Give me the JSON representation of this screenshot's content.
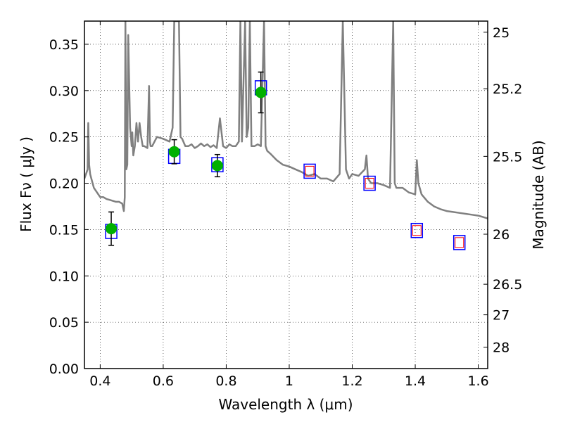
{
  "chart_data": {
    "type": "scatter",
    "title": "",
    "xlabel": "Wavelength  λ (μm)",
    "ylabel": "Flux  Fν  ( μJy )",
    "ylabel_right": "Magnitude (AB)",
    "xlim": [
      0.35,
      1.63
    ],
    "ylim": [
      0.0,
      0.375
    ],
    "grid": "dotted",
    "x_ticks": [
      0.4,
      0.6,
      0.8,
      1.0,
      1.2,
      1.4,
      1.6
    ],
    "x_tick_labels": [
      "0.4",
      "0.6",
      "0.8",
      "1",
      "1.2",
      "1.4",
      "1.6"
    ],
    "y_ticks": [
      0.0,
      0.05,
      0.1,
      0.15,
      0.2,
      0.25,
      0.3,
      0.35
    ],
    "y_tick_labels": [
      "0.00",
      "0.05",
      "0.10",
      "0.15",
      "0.20",
      "0.25",
      "0.30",
      "0.35"
    ],
    "right_ticks": [
      {
        "label": "25",
        "flux": 0.363
      },
      {
        "label": "25.2",
        "flux": 0.302
      },
      {
        "label": "25.5",
        "flux": 0.229
      },
      {
        "label": "26",
        "flux": 0.145
      },
      {
        "label": "26.5",
        "flux": 0.091
      },
      {
        "label": "27",
        "flux": 0.058
      },
      {
        "label": "28",
        "flux": 0.023
      }
    ],
    "colors": {
      "model": "#808080",
      "observed": "#00b000",
      "synthetic_box": "#0000ff",
      "predicted_box": "#ff0000",
      "errorbar": "#000000"
    },
    "series": [
      {
        "kind": "line",
        "x": [
          0.35,
          0.36,
          0.362,
          0.365,
          0.368,
          0.372,
          0.38,
          0.39,
          0.4,
          0.41,
          0.42,
          0.43,
          0.44,
          0.45,
          0.46,
          0.47,
          0.475,
          0.478,
          0.48,
          0.483,
          0.486,
          0.489,
          0.495,
          0.5,
          0.502,
          0.505,
          0.51,
          0.515,
          0.52,
          0.525,
          0.53,
          0.535,
          0.54,
          0.55,
          0.555,
          0.558,
          0.56,
          0.565,
          0.58,
          0.6,
          0.62,
          0.63,
          0.635,
          0.64,
          0.645,
          0.65,
          0.655,
          0.66,
          0.67,
          0.68,
          0.69,
          0.7,
          0.71,
          0.72,
          0.73,
          0.74,
          0.75,
          0.76,
          0.77,
          0.78,
          0.79,
          0.8,
          0.81,
          0.82,
          0.83,
          0.84,
          0.845,
          0.85,
          0.86,
          0.865,
          0.87,
          0.875,
          0.88,
          0.89,
          0.9,
          0.91,
          0.92,
          0.925,
          0.93,
          0.94,
          0.96,
          0.98,
          1.0,
          1.02,
          1.04,
          1.06,
          1.08,
          1.1,
          1.12,
          1.14,
          1.16,
          1.17,
          1.18,
          1.19,
          1.2,
          1.22,
          1.24,
          1.245,
          1.25,
          1.26,
          1.27,
          1.28,
          1.3,
          1.32,
          1.33,
          1.335,
          1.34,
          1.36,
          1.38,
          1.4,
          1.405,
          1.41,
          1.42,
          1.44,
          1.46,
          1.48,
          1.5,
          1.52,
          1.54,
          1.56,
          1.58,
          1.6,
          1.63
        ],
        "y": [
          0.205,
          0.215,
          0.265,
          0.22,
          0.21,
          0.205,
          0.195,
          0.19,
          0.185,
          0.185,
          0.183,
          0.182,
          0.181,
          0.18,
          0.18,
          0.178,
          0.17,
          0.185,
          0.375,
          0.215,
          0.22,
          0.36,
          0.26,
          0.24,
          0.255,
          0.23,
          0.24,
          0.265,
          0.245,
          0.265,
          0.25,
          0.24,
          0.24,
          0.238,
          0.305,
          0.245,
          0.24,
          0.24,
          0.25,
          0.248,
          0.245,
          0.26,
          0.375,
          0.375,
          0.375,
          0.375,
          0.25,
          0.248,
          0.24,
          0.24,
          0.242,
          0.238,
          0.24,
          0.243,
          0.24,
          0.242,
          0.239,
          0.241,
          0.238,
          0.27,
          0.24,
          0.238,
          0.242,
          0.24,
          0.24,
          0.245,
          0.375,
          0.245,
          0.375,
          0.25,
          0.26,
          0.375,
          0.24,
          0.24,
          0.242,
          0.24,
          0.375,
          0.24,
          0.235,
          0.232,
          0.225,
          0.22,
          0.218,
          0.215,
          0.212,
          0.208,
          0.21,
          0.205,
          0.205,
          0.202,
          0.21,
          0.375,
          0.215,
          0.205,
          0.21,
          0.208,
          0.215,
          0.23,
          0.205,
          0.2,
          0.2,
          0.2,
          0.198,
          0.195,
          0.375,
          0.2,
          0.195,
          0.195,
          0.19,
          0.188,
          0.225,
          0.2,
          0.188,
          0.18,
          0.175,
          0.172,
          0.17,
          0.169,
          0.168,
          0.167,
          0.166,
          0.165,
          0.162
        ]
      },
      {
        "kind": "points",
        "x": [
          0.435,
          0.635,
          0.772,
          0.91
        ],
        "y": [
          0.151,
          0.234,
          0.219,
          0.298
        ],
        "err": [
          0.018,
          0.013,
          0.012,
          0.022
        ]
      },
      {
        "kind": "boxes",
        "x": [
          0.435,
          0.635,
          0.772,
          0.91,
          1.065,
          1.255,
          1.405,
          1.54
        ],
        "y": [
          0.148,
          0.229,
          0.22,
          0.303,
          0.213,
          0.2,
          0.149,
          0.136
        ]
      },
      {
        "kind": "inner_boxes",
        "x": [
          1.065,
          1.255,
          1.405,
          1.54
        ],
        "y": [
          0.213,
          0.2,
          0.149,
          0.136
        ]
      }
    ]
  }
}
